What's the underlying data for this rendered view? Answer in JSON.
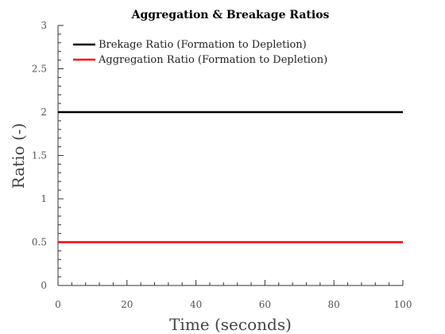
{
  "chart_data": {
    "type": "line",
    "title": "Aggregation & Breakage Ratios",
    "xlabel": "Time (seconds)",
    "ylabel": "Ratio (-)",
    "xlim": [
      0,
      100
    ],
    "ylim": [
      0,
      3
    ],
    "x_ticks": [
      "0",
      "20",
      "40",
      "60",
      "80",
      "100"
    ],
    "y_ticks": [
      "0",
      "0.5",
      "1",
      "1.5",
      "2",
      "2.5",
      "3"
    ],
    "x": [
      0,
      100
    ],
    "series": [
      {
        "name": "Brekage Ratio (Formation to Depletion)",
        "values": [
          2,
          2
        ],
        "color": "#000000"
      },
      {
        "name": "Aggregation Ratio (Formation to Depletion)",
        "values": [
          0.5,
          0.5
        ],
        "color": "#ff0000"
      }
    ],
    "grid": false,
    "legend_position": "top-left"
  }
}
